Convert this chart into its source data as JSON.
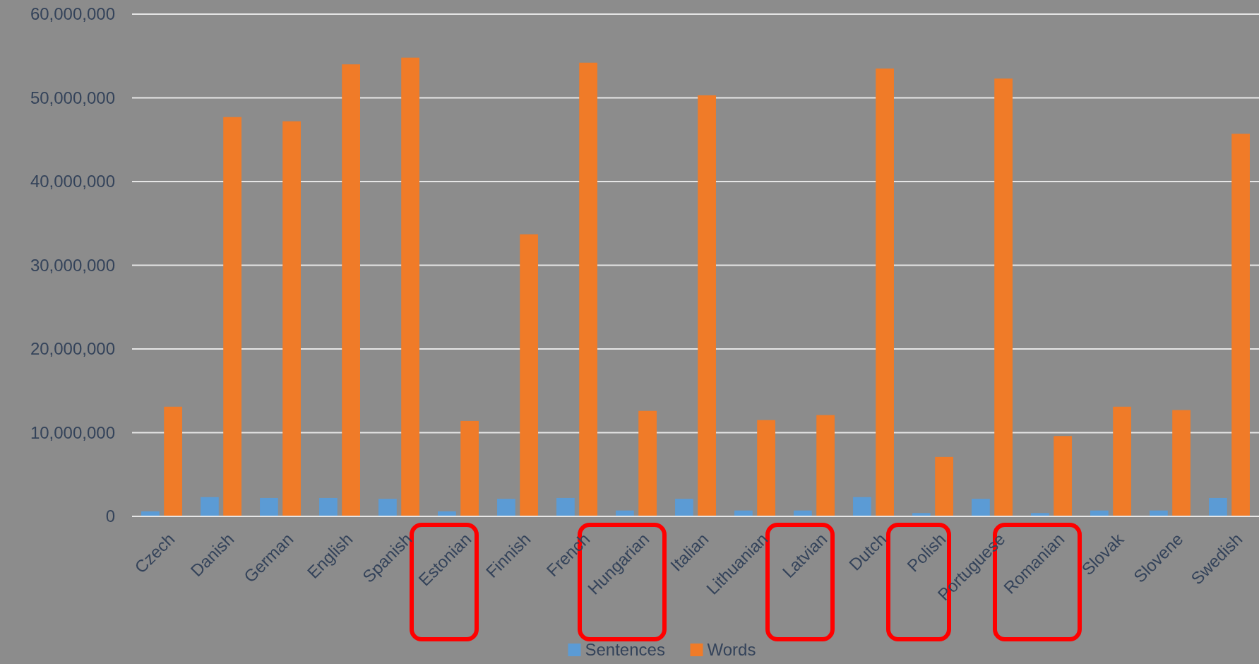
{
  "chart_data": {
    "type": "bar",
    "categories": [
      "Czech",
      "Danish",
      "German",
      "English",
      "Spanish",
      "Estonian",
      "Finnish",
      "French",
      "Hungarian",
      "Italian",
      "Lithuanian",
      "Latvian",
      "Dutch",
      "Polish",
      "Portuguese",
      "Romanian",
      "Slovak",
      "Slovene",
      "Swedish"
    ],
    "series": [
      {
        "name": "Sentences",
        "color": "#5b9bd5",
        "values": [
          600000,
          2300000,
          2200000,
          2200000,
          2100000,
          600000,
          2100000,
          2200000,
          700000,
          2100000,
          700000,
          700000,
          2300000,
          400000,
          2100000,
          400000,
          700000,
          700000,
          2200000
        ]
      },
      {
        "name": "Words",
        "color": "#f07b28",
        "values": [
          13100000,
          47700000,
          47200000,
          54000000,
          54800000,
          11400000,
          33700000,
          54200000,
          12600000,
          50300000,
          11500000,
          12100000,
          53500000,
          7100000,
          52300000,
          9600000,
          13100000,
          12700000,
          45700000
        ]
      }
    ],
    "ylim": [
      0,
      60000000
    ],
    "yticks": [
      {
        "value": 0,
        "label": "0"
      },
      {
        "value": 10000000,
        "label": "10,000,000"
      },
      {
        "value": 20000000,
        "label": "20,000,000"
      },
      {
        "value": 30000000,
        "label": "30,000,000"
      },
      {
        "value": 40000000,
        "label": "40,000,000"
      },
      {
        "value": 50000000,
        "label": "50,000,000"
      },
      {
        "value": 60000000,
        "label": "60,000,000"
      }
    ],
    "grid": "y",
    "legend": "bottom"
  }
}
